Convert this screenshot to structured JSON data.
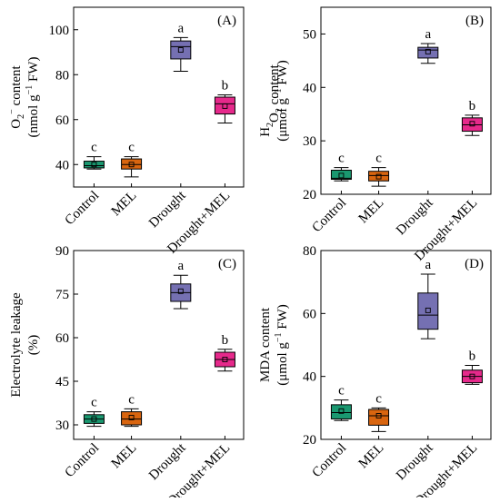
{
  "chart_data": [
    {
      "type": "box",
      "panel_label": "(A)",
      "ylabel_main": "O",
      "ylabel_sub": "2",
      "ylabel_sup": "−",
      "ylabel_rest": " content",
      "ylabel_line2": "(nmol g",
      "ylabel_line2_sup": "−1",
      "ylabel_line2_end": " FW)",
      "ylim": [
        30,
        110
      ],
      "yticks": [
        40,
        60,
        80,
        100
      ],
      "categories": [
        "Control",
        "MEL",
        "Drought",
        "Drought+MEL"
      ],
      "colors": [
        "#1a9870",
        "#d9650f",
        "#7570b2",
        "#e6298b"
      ],
      "letters": [
        "c",
        "c",
        "a",
        "b"
      ],
      "boxes": [
        {
          "whisker_low": 38,
          "q1": 38.5,
          "median": 39.5,
          "q3": 41.5,
          "whisker_high": 43.5,
          "mean": 40
        },
        {
          "whisker_low": 34.5,
          "q1": 38,
          "median": 40,
          "q3": 42.5,
          "whisker_high": 43.5,
          "mean": 40
        },
        {
          "whisker_low": 81.5,
          "q1": 87,
          "median": 92.5,
          "q3": 95,
          "whisker_high": 96.5,
          "mean": 91
        },
        {
          "whisker_low": 58.5,
          "q1": 62.5,
          "median": 67,
          "q3": 70,
          "whisker_high": 71,
          "mean": 66
        }
      ]
    },
    {
      "type": "box",
      "panel_label": "(B)",
      "ylabel_main": "H",
      "ylabel_sub": "2",
      "ylabel_mid": "O",
      "ylabel_sub2": "2",
      "ylabel_rest": " content",
      "ylabel_line2": "(μmol g",
      "ylabel_line2_sup": "−1",
      "ylabel_line2_end": " FW)",
      "ylim": [
        20,
        55
      ],
      "yticks": [
        20,
        30,
        40,
        50
      ],
      "categories": [
        "Control",
        "MEL",
        "Drought",
        "Drought+MEL"
      ],
      "colors": [
        "#1a9870",
        "#d9650f",
        "#7570b2",
        "#e6298b"
      ],
      "letters": [
        "c",
        "c",
        "a",
        "b"
      ],
      "boxes": [
        {
          "whisker_low": 22.5,
          "q1": 22.8,
          "median": 23,
          "q3": 24.5,
          "whisker_high": 25,
          "mean": 23.5
        },
        {
          "whisker_low": 21.5,
          "q1": 22.5,
          "median": 23.5,
          "q3": 24.3,
          "whisker_high": 25,
          "mean": 23.3
        },
        {
          "whisker_low": 44.5,
          "q1": 45.5,
          "median": 47,
          "q3": 47.5,
          "whisker_high": 48.2,
          "mean": 46.7
        },
        {
          "whisker_low": 31,
          "q1": 31.8,
          "median": 33,
          "q3": 34.3,
          "whisker_high": 34.8,
          "mean": 33.2
        }
      ]
    },
    {
      "type": "box",
      "panel_label": "(C)",
      "ylabel_main": "Electrolyte leakage",
      "ylabel_line2": "(%)",
      "ylim": [
        25,
        90
      ],
      "yticks": [
        30,
        45,
        60,
        75,
        90
      ],
      "categories": [
        "Control",
        "MEL",
        "Drought",
        "Drought+MEL"
      ],
      "colors": [
        "#1a9870",
        "#d9650f",
        "#7570b2",
        "#e6298b"
      ],
      "letters": [
        "c",
        "c",
        "a",
        "b"
      ],
      "boxes": [
        {
          "whisker_low": 29.5,
          "q1": 30.5,
          "median": 32,
          "q3": 33.5,
          "whisker_high": 34.5,
          "mean": 32
        },
        {
          "whisker_low": 29.5,
          "q1": 30,
          "median": 32,
          "q3": 34.5,
          "whisker_high": 35.5,
          "mean": 32.5
        },
        {
          "whisker_low": 70,
          "q1": 72.5,
          "median": 75.5,
          "q3": 78.5,
          "whisker_high": 81.5,
          "mean": 76
        },
        {
          "whisker_low": 48.5,
          "q1": 50,
          "median": 52.5,
          "q3": 55,
          "whisker_high": 56,
          "mean": 52.5
        }
      ]
    },
    {
      "type": "box",
      "panel_label": "(D)",
      "ylabel_main": "MDA content",
      "ylabel_line2": "(μmol g",
      "ylabel_line2_sup": "−1",
      "ylabel_line2_end": " FW)",
      "ylim": [
        20,
        80
      ],
      "yticks": [
        20,
        40,
        60,
        80
      ],
      "categories": [
        "Control",
        "MEL",
        "Drought",
        "Drought+MEL"
      ],
      "colors": [
        "#1a9870",
        "#d9650f",
        "#7570b2",
        "#e6298b"
      ],
      "letters": [
        "c",
        "c",
        "a",
        "b"
      ],
      "boxes": [
        {
          "whisker_low": 26,
          "q1": 26.5,
          "median": 28.5,
          "q3": 31,
          "whisker_high": 32.5,
          "mean": 29
        },
        {
          "whisker_low": 22.5,
          "q1": 24.5,
          "median": 27.5,
          "q3": 29.5,
          "whisker_high": 30,
          "mean": 27.5
        },
        {
          "whisker_low": 52,
          "q1": 55,
          "median": 59.5,
          "q3": 66.5,
          "whisker_high": 72.5,
          "mean": 61
        },
        {
          "whisker_low": 37.5,
          "q1": 38,
          "median": 40,
          "q3": 42,
          "whisker_high": 43.5,
          "mean": 40
        }
      ]
    }
  ]
}
